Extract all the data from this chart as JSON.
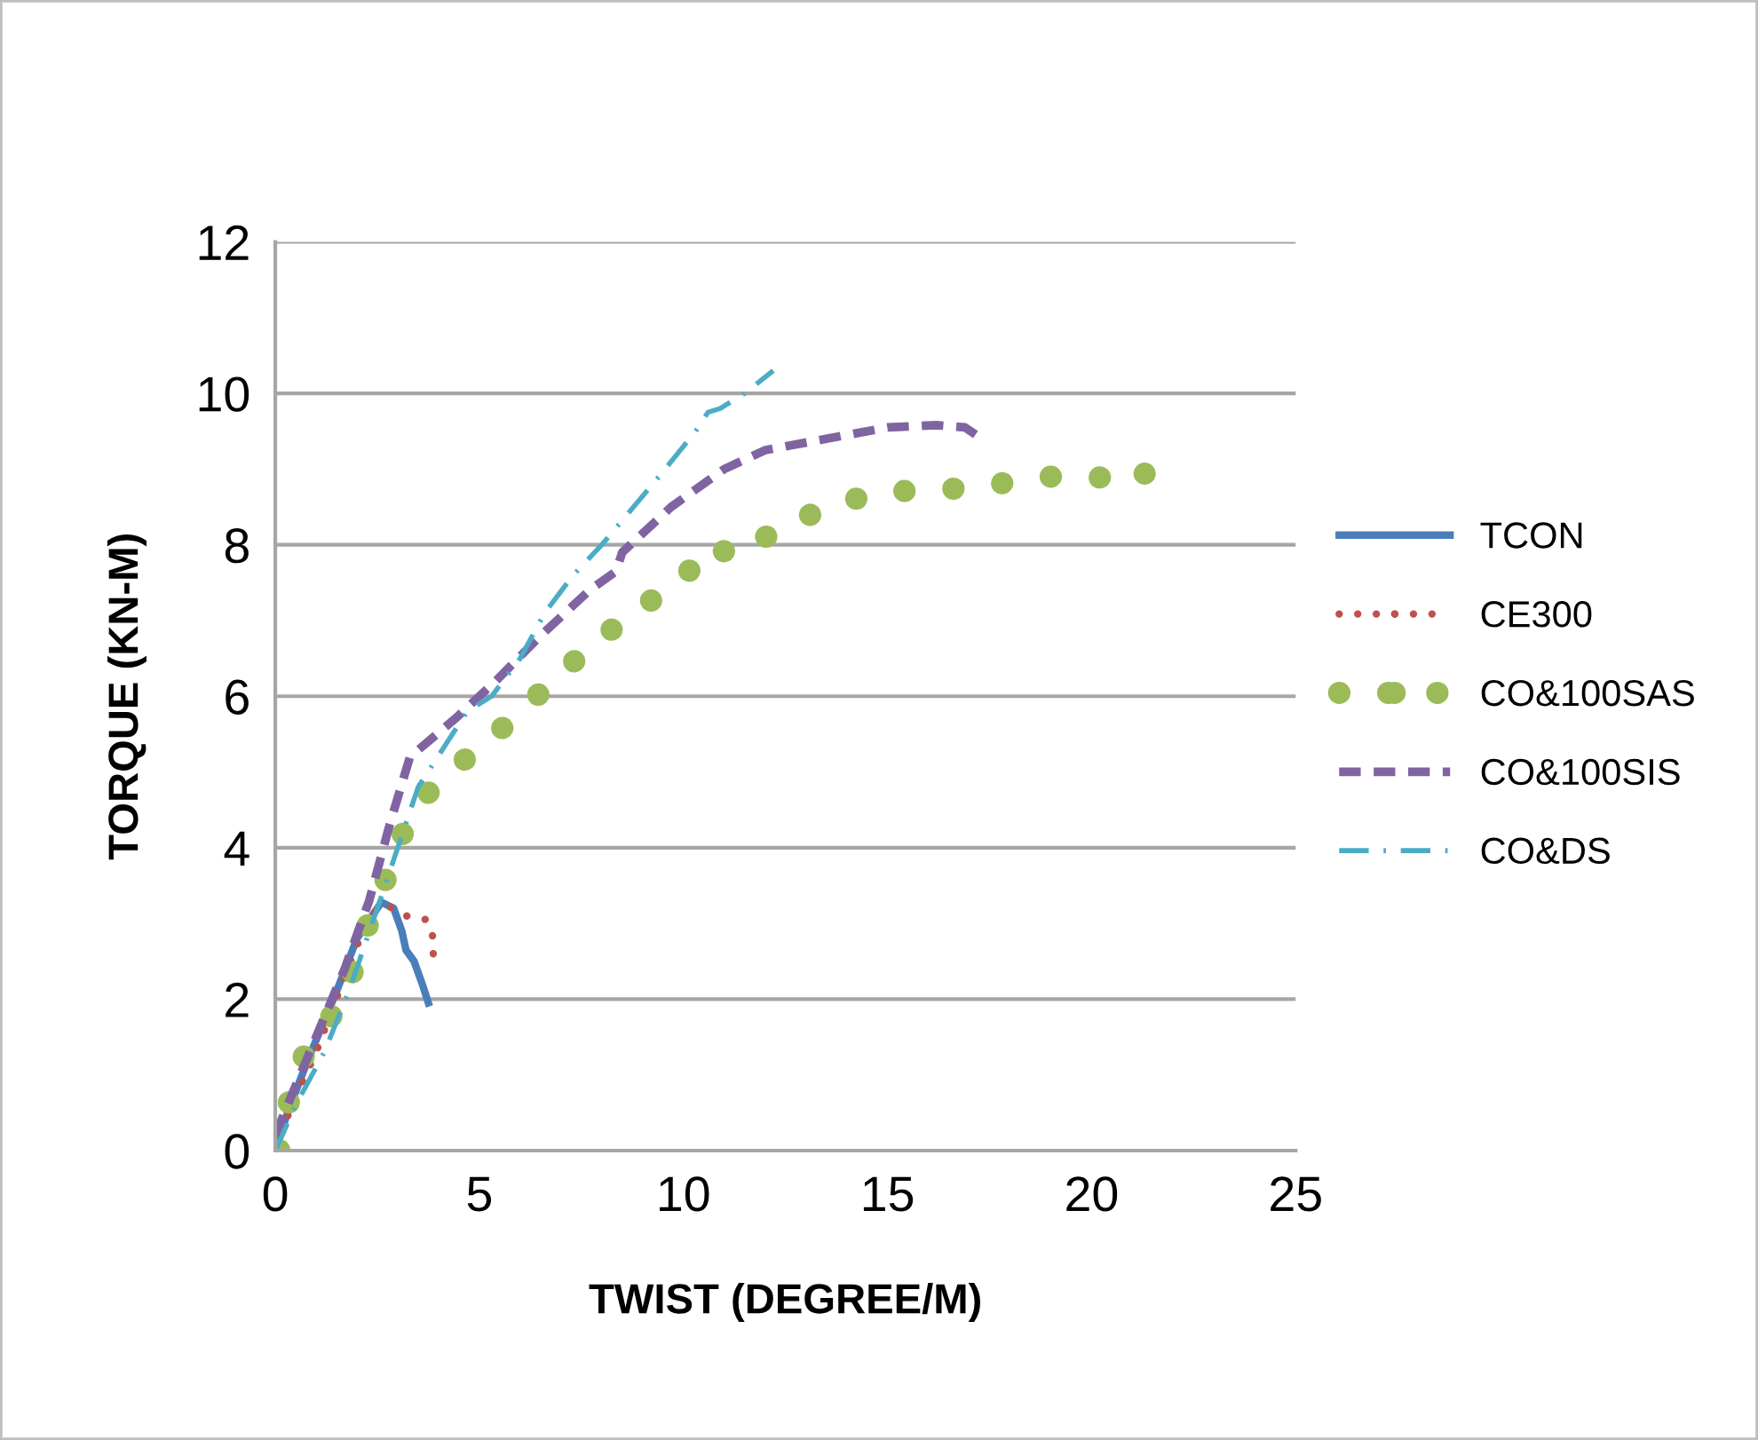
{
  "chart_data": {
    "type": "line",
    "xlabel": "TWIST (DEGREE/M)",
    "ylabel": "TORQUE (KN-M)",
    "xlim": [
      0,
      25
    ],
    "xticks": [
      0,
      5,
      10,
      15,
      20,
      25
    ],
    "ylim": [
      0,
      12
    ],
    "yticks": [
      0,
      2,
      4,
      6,
      8,
      10,
      12
    ],
    "grid": "y",
    "legend": "right",
    "marker": "none",
    "series": [
      {
        "name": "TCON",
        "color": "#4a7ebb",
        "line_style": "solid",
        "x": [
          0,
          0.3,
          0.8,
          1.5,
          2.0,
          2.6,
          2.9,
          3.1,
          3.2,
          3.4,
          3.6,
          3.75
        ],
        "values": [
          0,
          0.5,
          1.2,
          2.1,
          2.8,
          3.28,
          3.2,
          2.9,
          2.65,
          2.5,
          2.2,
          1.95
        ]
      },
      {
        "name": "CE300",
        "color": "#c0504d",
        "line_style": "dotted",
        "x": [
          0,
          0.4,
          1.0,
          1.7,
          2.3,
          2.7,
          3.2,
          3.7,
          3.85,
          3.87
        ],
        "values": [
          0,
          0.6,
          1.3,
          2.3,
          3.1,
          3.25,
          3.1,
          3.05,
          2.85,
          2.6
        ]
      },
      {
        "name": "CO&100SAS",
        "color": "#9bbb59",
        "line_style": "dotted",
        "x": [
          0.1,
          0.5,
          1.2,
          1.8,
          2.1,
          2.4,
          2.8,
          3.2,
          3.7,
          4.5,
          5.4,
          6.1,
          6.8,
          7.6,
          8.4,
          9.3,
          10.0,
          10.6,
          11.3,
          12.0,
          12.9,
          13.8,
          14.9,
          15.9,
          16.9,
          17.9,
          19.0,
          20.0,
          21.3
        ],
        "values": [
          0,
          1.1,
          1.6,
          2.2,
          2.7,
          3.2,
          3.7,
          4.3,
          4.7,
          5.1,
          5.5,
          5.85,
          6.2,
          6.6,
          6.95,
          7.3,
          7.55,
          8.0,
          7.85,
          8.1,
          8.35,
          8.55,
          8.7,
          8.72,
          8.75,
          8.82,
          8.9,
          8.88,
          8.94
        ]
      },
      {
        "name": "CO&100SIS",
        "color": "#8064a2",
        "line_style": "dashed",
        "x": [
          0,
          0.3,
          1.0,
          1.7,
          2.3,
          2.8,
          3.3,
          4.4,
          5.4,
          6.5,
          7.7,
          8.35,
          8.5,
          9.7,
          11.0,
          12.0,
          13.5,
          15.0,
          16.2,
          16.9,
          17.2
        ],
        "values": [
          0.2,
          0.6,
          1.5,
          2.4,
          3.3,
          4.3,
          5.2,
          5.7,
          6.2,
          6.8,
          7.4,
          7.65,
          7.9,
          8.5,
          9.0,
          9.25,
          9.4,
          9.55,
          9.58,
          9.55,
          9.44
        ]
      },
      {
        "name": "CO&DS",
        "color": "#4bacc6",
        "line_style": "dashdot",
        "x": [
          0,
          0.5,
          1.2,
          1.8,
          2.5,
          3.0,
          3.5,
          4.7,
          5.3,
          6.0,
          6.6,
          7.3,
          8.0,
          9.4,
          10.3,
          10.6,
          10.9,
          11.5,
          12.2
        ],
        "values": [
          0,
          0.6,
          1.3,
          2.1,
          3.2,
          4.0,
          4.8,
          5.8,
          6.0,
          6.5,
          7.1,
          7.6,
          8.0,
          8.9,
          9.5,
          9.75,
          9.8,
          10.0,
          10.3
        ]
      }
    ]
  }
}
